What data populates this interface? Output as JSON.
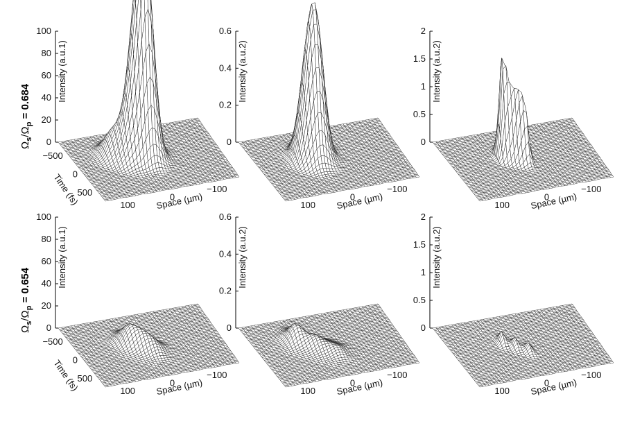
{
  "row_labels": [
    {
      "omega": "Ω",
      "sub_s": "s",
      "slash": "/Ω",
      "sub_p": "p",
      "value": " = 0.684"
    },
    {
      "omega": "Ω",
      "sub_s": "s",
      "slash": "/Ω",
      "sub_p": "p",
      "value": " = 0.654"
    }
  ],
  "chart_data": [
    {
      "type": "surface",
      "row": 0,
      "col": 0,
      "zlabel": "Intensity (a.u.1)",
      "xlabel": "Space (µm)",
      "ylabel": "Time (fs)",
      "zticks": [
        "100",
        "80",
        "60",
        "40",
        "20",
        "0"
      ],
      "zlim": [
        0,
        100
      ],
      "xticks": [
        "100",
        "0",
        "−100"
      ],
      "yticks": [
        "−500",
        "0",
        "500"
      ],
      "peaks": [
        {
          "x": 10,
          "t": -100,
          "height": 97
        },
        {
          "x": 0,
          "t": -60,
          "height": 85
        },
        {
          "x": 25,
          "t": -150,
          "height": 70
        },
        {
          "x": 45,
          "t": -80,
          "height": 30
        },
        {
          "x": 70,
          "t": -250,
          "height": 20
        }
      ]
    },
    {
      "type": "surface",
      "row": 0,
      "col": 1,
      "zlabel": "Intensity (a.u.2)",
      "xlabel": "Space (µm)",
      "zticks": [
        "0.6",
        "0.4",
        "0.2",
        "0"
      ],
      "zlim": [
        0,
        0.6
      ],
      "xticks": [
        "100",
        "0",
        "−100"
      ],
      "peaks": [
        {
          "x": 20,
          "t": -150,
          "height": 0.44
        },
        {
          "x": 45,
          "t": -130,
          "height": 0.39
        },
        {
          "x": 30,
          "t": -50,
          "height": 0.3
        }
      ]
    },
    {
      "type": "surface",
      "row": 0,
      "col": 2,
      "zlabel": "Intensity (a.u.2)",
      "xlabel": "Space (µm)",
      "zticks": [
        "2",
        "1.5",
        "1",
        "0.5",
        "0"
      ],
      "zlim": [
        0,
        2
      ],
      "xticks": [
        "100",
        "0",
        "−100"
      ],
      "peaks": [
        {
          "x": 40,
          "t": -150,
          "height": 1.7
        },
        {
          "x": 30,
          "t": -100,
          "height": 1.1
        },
        {
          "x": 20,
          "t": -50,
          "height": 1.0
        },
        {
          "x": 10,
          "t": 0,
          "height": 1.05
        },
        {
          "x": 0,
          "t": 50,
          "height": 0.8
        }
      ]
    },
    {
      "type": "surface",
      "row": 1,
      "col": 0,
      "zlabel": "Intensity (a.u.1)",
      "xlabel": "Space (µm)",
      "ylabel": "Time (fs)",
      "zticks": [
        "100",
        "80",
        "60",
        "40",
        "20",
        "0"
      ],
      "zlim": [
        0,
        100
      ],
      "xticks": [
        "100",
        "0",
        "−100"
      ],
      "yticks": [
        "−500",
        "0",
        "500"
      ],
      "peaks": [
        {
          "x": 40,
          "t": -150,
          "height": 14
        },
        {
          "x": 20,
          "t": 0,
          "height": 11
        },
        {
          "x": 0,
          "t": 150,
          "height": 8
        }
      ]
    },
    {
      "type": "surface",
      "row": 1,
      "col": 1,
      "zlabel": "Intensity (a.u.2)",
      "xlabel": "Space (µm)",
      "zticks": [
        "0.6",
        "0.4",
        "0.2",
        "0"
      ],
      "zlim": [
        0,
        0.6
      ],
      "xticks": [
        "100",
        "0",
        "−100"
      ],
      "peaks": [
        {
          "x": 60,
          "t": -250,
          "height": 0.09
        },
        {
          "x": 30,
          "t": 0,
          "height": 0.06
        },
        {
          "x": 0,
          "t": 200,
          "height": 0.04
        }
      ]
    },
    {
      "type": "surface",
      "row": 1,
      "col": 2,
      "zlabel": "Intensity (a.u.2)",
      "xlabel": "Space (µm)",
      "zticks": [
        "2",
        "1.5",
        "1",
        "0.5",
        "0"
      ],
      "zlim": [
        0,
        2
      ],
      "xticks": [
        "100",
        "0",
        "−100"
      ],
      "peaks": [
        {
          "x": 40,
          "t": -150,
          "height": 0.22
        },
        {
          "x": 20,
          "t": 0,
          "height": 0.18
        },
        {
          "x": 0,
          "t": 150,
          "height": 0.15
        }
      ]
    }
  ]
}
